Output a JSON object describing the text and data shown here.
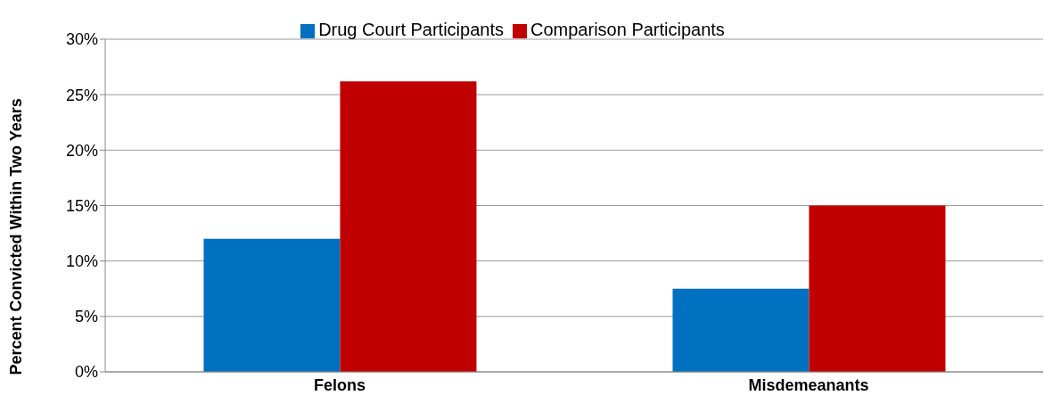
{
  "chart_data": {
    "type": "bar",
    "ylabel": "Percent Convicted Within Two Years",
    "categories": [
      "Felons",
      "Misdemeanants"
    ],
    "series": [
      {
        "name": "Drug Court Participants",
        "color": "#0070c0",
        "values": [
          12,
          7.5
        ]
      },
      {
        "name": "Comparison Participants",
        "color": "#c00000",
        "values": [
          26.2,
          15
        ]
      }
    ],
    "ylim": [
      0,
      30
    ],
    "yticks": [
      {
        "value": 0,
        "label": "0%"
      },
      {
        "value": 5,
        "label": "5%"
      },
      {
        "value": 10,
        "label": "10%"
      },
      {
        "value": 15,
        "label": "15%"
      },
      {
        "value": 20,
        "label": "20%"
      },
      {
        "value": 25,
        "label": "25%"
      },
      {
        "value": 30,
        "label": "30%"
      }
    ],
    "grid": "y",
    "legend": "top"
  }
}
